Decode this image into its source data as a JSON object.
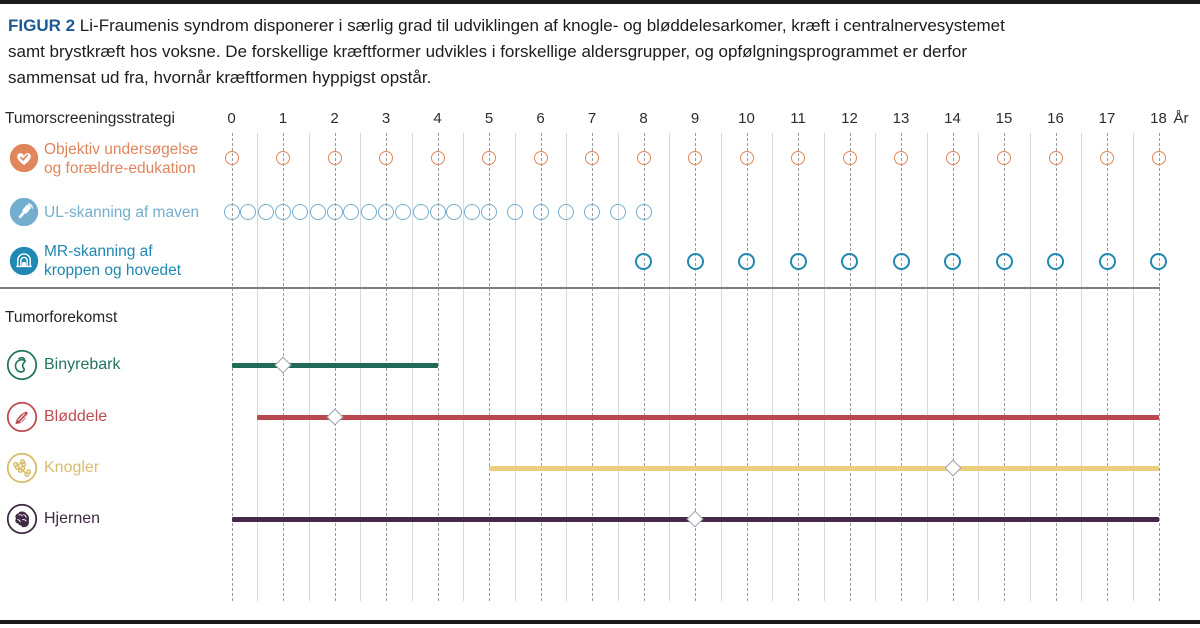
{
  "figure": {
    "label": "FIGUR 2",
    "caption_lines": [
      "Li-Fraumenis syndrom disponerer i særlig grad til udviklingen af knogle- og bløddelesarkomer, kræft i centralnervesystemet",
      "samt brystkræft hos voksne. De forskellige kræftformer udvikles i forskellige aldersgrupper, og opfølgningsprogrammet er derfor",
      "sammensat ud fra, hvornår kræftformen hyppigst opstår."
    ],
    "label_color": "#1b5a96"
  },
  "chart_data": {
    "type": "timeline",
    "x_axis": {
      "min": 0,
      "max": 18,
      "step": 1,
      "ticks": [
        "0",
        "1",
        "2",
        "3",
        "4",
        "5",
        "6",
        "7",
        "8",
        "9",
        "10",
        "11",
        "12",
        "13",
        "14",
        "15",
        "16",
        "17",
        "18"
      ],
      "unit_label": "År",
      "grid": "dashed-yearly-with-half-year-solid"
    },
    "screening": {
      "section_title": "Tumorscreeningsstrategi",
      "rows": [
        {
          "id": "objektiv-undersogelse",
          "label_lines": [
            "Objektiv undersøgelse",
            "og forældre-edukation"
          ],
          "color": "#e0855c",
          "icon": "heart-check-icon",
          "marker": "open-circle",
          "marker_years": [
            0,
            1,
            2,
            3,
            4,
            5,
            6,
            7,
            8,
            9,
            10,
            11,
            12,
            13,
            14,
            15,
            16,
            17,
            18
          ]
        },
        {
          "id": "ul-skanning",
          "label_lines": [
            "UL-skanning af maven"
          ],
          "color": "#74aece",
          "icon": "ultrasound-probe-icon",
          "marker": "open-circle",
          "marker_years": [
            0,
            0.33,
            0.67,
            1,
            1.33,
            1.67,
            2,
            2.33,
            2.67,
            3,
            3.33,
            3.67,
            4,
            4.33,
            4.67,
            5,
            5.5,
            6,
            6.5,
            7,
            7.5,
            8
          ]
        },
        {
          "id": "mr-skanning",
          "label_lines": [
            "MR-skanning af",
            "kroppen og hovedet"
          ],
          "color": "#2088b2",
          "icon": "mri-scanner-icon",
          "marker": "open-circle",
          "marker_years": [
            8,
            9,
            10,
            11,
            12,
            13,
            14,
            15,
            16,
            17,
            18
          ]
        }
      ]
    },
    "tumors": {
      "section_title": "Tumorforekomst",
      "rows": [
        {
          "id": "binyrebark",
          "label": "Binyrebark",
          "color": "#1f6b58",
          "text_color": "#23755f",
          "icon": "adrenal-gland-icon",
          "bar": {
            "start": 0,
            "end": 4,
            "peak": 1
          }
        },
        {
          "id": "bloddele",
          "label": "Bløddele",
          "color": "#b9484e",
          "text_color": "#be4a52",
          "icon": "muscle-icon",
          "bar": {
            "start": 0.5,
            "end": 18,
            "peak": 2
          }
        },
        {
          "id": "knogler",
          "label": "Knogler",
          "color": "#eccf7d",
          "text_color": "#d9bc6b",
          "icon": "bone-icon",
          "bar": {
            "start": 5,
            "end": 18,
            "peak": 14
          }
        },
        {
          "id": "hjernen",
          "label": "Hjernen",
          "color": "#46294a",
          "text_color": "#3f2a44",
          "icon": "brain-icon",
          "bar": {
            "start": 0,
            "end": 18,
            "peak": 9
          }
        }
      ]
    },
    "peak_marker": {
      "shape": "diamond",
      "fill": "#ffffff",
      "stroke": "#98a0a6"
    }
  }
}
